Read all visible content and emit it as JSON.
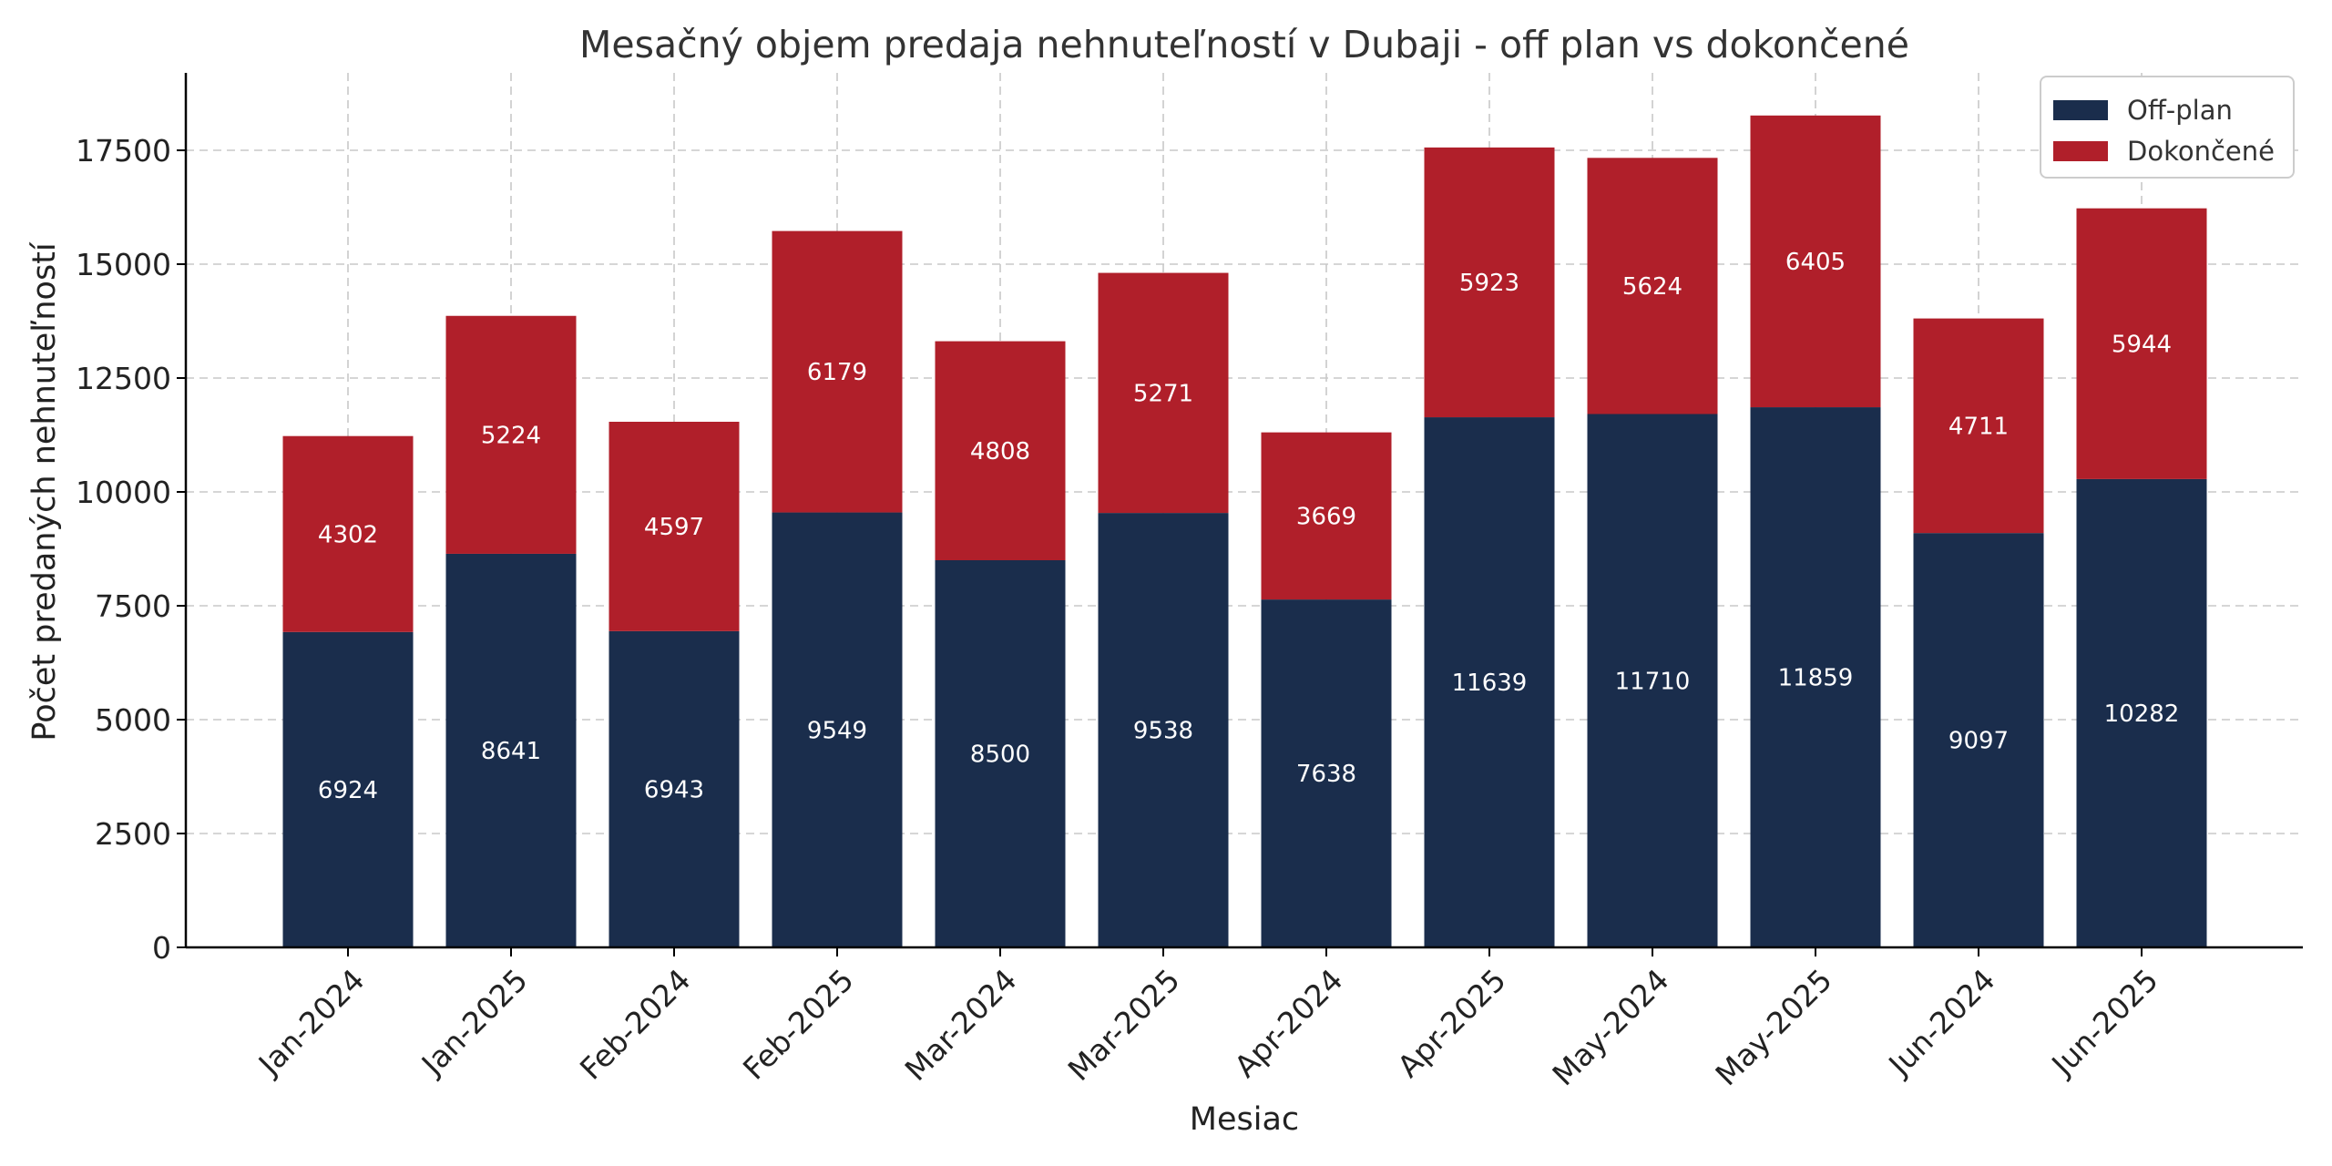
{
  "chart_data": {
    "type": "bar",
    "stacked": true,
    "title": "Mesačný objem predaja nehnuteľností v Dubaji - off plan vs dokončené",
    "xlabel": "Mesiac",
    "ylabel": "Počet predaných nehnuteľností",
    "categories": [
      "Jan-2024",
      "Jan-2025",
      "Feb-2024",
      "Feb-2025",
      "Mar-2024",
      "Mar-2025",
      "Apr-2024",
      "Apr-2025",
      "May-2024",
      "May-2025",
      "Jun-2024",
      "Jun-2025"
    ],
    "series": [
      {
        "name": "Off-plan",
        "color": "#1a2d4c",
        "values": [
          6924,
          8641,
          6943,
          9549,
          8500,
          9538,
          7638,
          11639,
          11710,
          11859,
          9097,
          10282
        ]
      },
      {
        "name": "Dokončené",
        "color": "#b01f2a",
        "values": [
          4302,
          5224,
          4597,
          6179,
          4808,
          5271,
          3669,
          5923,
          5624,
          6405,
          4711,
          5944
        ]
      }
    ],
    "ylim": [
      0,
      19200
    ],
    "yticks": [
      0,
      2500,
      5000,
      7500,
      10000,
      12500,
      15000,
      17500
    ],
    "grid": true,
    "legend": "top-right",
    "data_labels": true
  }
}
